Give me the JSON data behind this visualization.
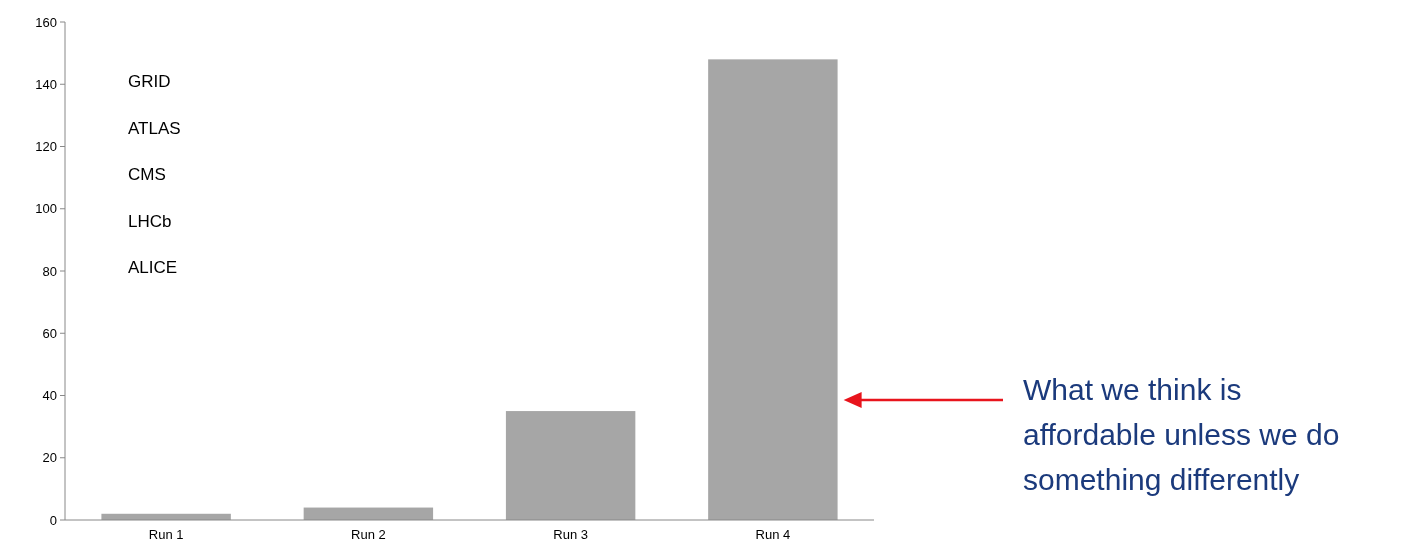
{
  "chart_data": {
    "type": "bar",
    "categories": [
      "Run 1",
      "Run 2",
      "Run 3",
      "Run 4"
    ],
    "values": [
      2,
      4,
      35,
      148
    ],
    "color": "#a6a6a6",
    "ylim": [
      0,
      160
    ],
    "yticks": [
      0,
      20,
      40,
      60,
      80,
      100,
      120,
      140,
      160
    ],
    "grid": false,
    "annotations": [
      "GRID",
      "ATLAS",
      "CMS",
      "LHCb",
      "ALICE",
      "What we think is affordable unless we do something differently"
    ]
  }
}
